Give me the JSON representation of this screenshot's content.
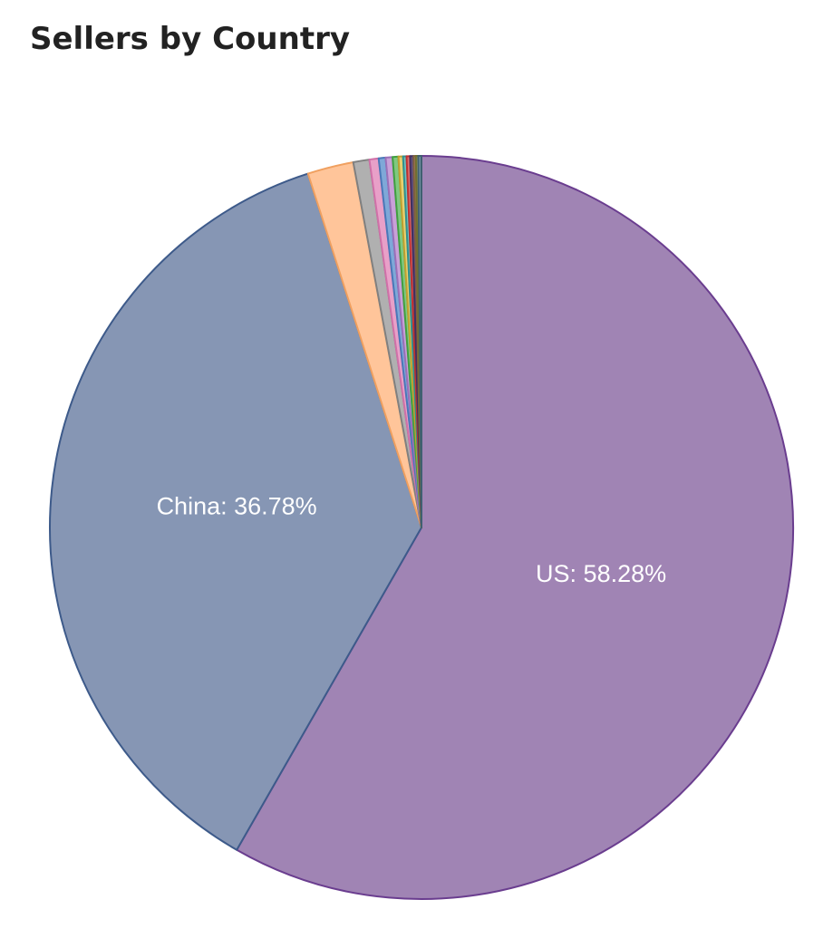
{
  "chart_data": {
    "type": "pie",
    "title": "Sellers by Country",
    "values": [
      58.28,
      36.78,
      2.0,
      0.7,
      0.4,
      0.3,
      0.3,
      0.25,
      0.2,
      0.15,
      0.15,
      0.15,
      0.1,
      0.1,
      0.14
    ],
    "value_labels": [
      "US: 58.28%",
      "China: 36.78%",
      null,
      null,
      null,
      null,
      null,
      null,
      null,
      null,
      null,
      null,
      null,
      null,
      null
    ],
    "colors": [
      "#a084b4",
      "#8696b4",
      "#ffc59a",
      "#b0b0b0",
      "#e8a0c8",
      "#7fa8d8",
      "#c8a0d8",
      "#80c880",
      "#e8d070",
      "#70c0c0",
      "#e07070",
      "#605080",
      "#b08060",
      "#a0a060",
      "#7090a0"
    ],
    "edge_colors": [
      "#6a3d8f",
      "#3d5a8a",
      "#f0a060",
      "#808080",
      "#d070a8",
      "#4a78b8",
      "#9a70b8",
      "#40a040",
      "#c0a030",
      "#309090",
      "#c03030",
      "#403060",
      "#806040",
      "#707030",
      "#406070"
    ]
  }
}
